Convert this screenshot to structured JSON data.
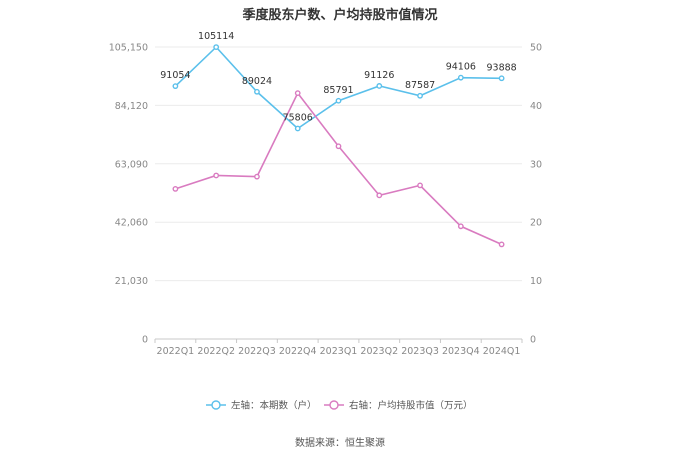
{
  "chart_data": {
    "type": "line",
    "title": "季度股东户数、户均持股市值情况",
    "categories": [
      "2022Q1",
      "2022Q2",
      "2022Q3",
      "2022Q4",
      "2023Q1",
      "2023Q2",
      "2023Q3",
      "2023Q4",
      "2024Q1"
    ],
    "left_axis": {
      "ylim": [
        0,
        105150
      ],
      "ticks": [
        "0",
        "21,030",
        "42,060",
        "63,090",
        "84,120",
        "105,150"
      ]
    },
    "right_axis": {
      "ylim": [
        0,
        50
      ],
      "ticks": [
        "0",
        "10",
        "20",
        "30",
        "40",
        "50"
      ]
    },
    "series": [
      {
        "name": "左轴：本期数（户）",
        "axis": "left",
        "color": "#5bc0eb",
        "values": [
          91054,
          105114,
          89024,
          75806,
          85791,
          91126,
          87587,
          94106,
          93888
        ],
        "labels": [
          "91054",
          "105114",
          "89024",
          "75806",
          "85791",
          "91126",
          "87587",
          "94106",
          "93888"
        ]
      },
      {
        "name": "右轴：户均持股市值（万元）",
        "axis": "right",
        "color": "#d97bc0",
        "values": [
          25.7,
          28.0,
          27.8,
          42.1,
          33.0,
          24.6,
          26.3,
          19.3,
          16.2
        ]
      }
    ],
    "grid": true,
    "legend_position": "bottom"
  },
  "source": "数据来源：恒生聚源"
}
